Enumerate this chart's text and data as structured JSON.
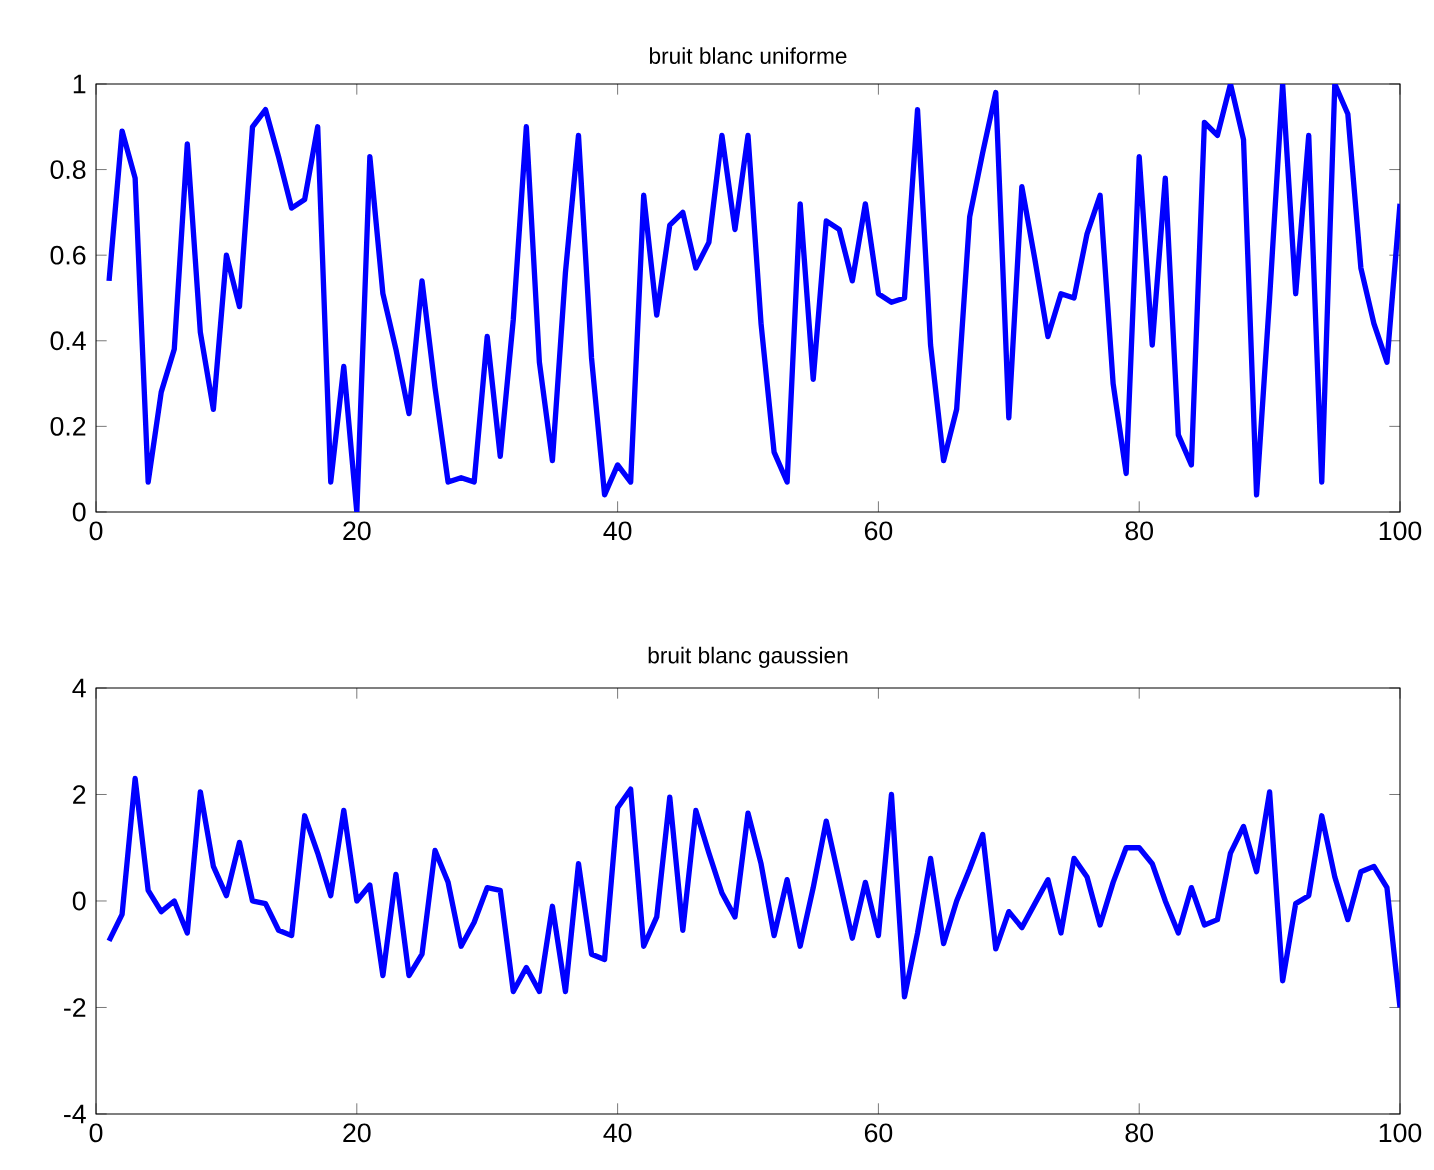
{
  "chart_data": [
    {
      "type": "line",
      "title": "bruit blanc uniforme",
      "color": "#0000ff",
      "x": [
        1,
        2,
        3,
        4,
        5,
        6,
        7,
        8,
        9,
        10,
        11,
        12,
        13,
        14,
        15,
        16,
        17,
        18,
        19,
        20,
        21,
        22,
        23,
        24,
        25,
        26,
        27,
        28,
        29,
        30,
        31,
        32,
        33,
        34,
        35,
        36,
        37,
        38,
        39,
        40,
        41,
        42,
        43,
        44,
        45,
        46,
        47,
        48,
        49,
        50,
        51,
        52,
        53,
        54,
        55,
        56,
        57,
        58,
        59,
        60,
        61,
        62,
        63,
        64,
        65,
        66,
        67,
        68,
        69,
        70,
        71,
        72,
        73,
        74,
        75,
        76,
        77,
        78,
        79,
        80,
        81,
        82,
        83,
        84,
        85,
        86,
        87,
        88,
        89,
        90,
        91,
        92,
        93,
        94,
        95,
        96,
        97,
        98,
        99,
        100
      ],
      "values": [
        0.54,
        0.89,
        0.78,
        0.07,
        0.28,
        0.38,
        0.86,
        0.42,
        0.24,
        0.6,
        0.48,
        0.9,
        0.94,
        0.83,
        0.71,
        0.73,
        0.9,
        0.07,
        0.34,
        0.0,
        0.83,
        0.51,
        0.38,
        0.23,
        0.54,
        0.29,
        0.07,
        0.08,
        0.07,
        0.41,
        0.13,
        0.45,
        0.9,
        0.35,
        0.12,
        0.56,
        0.88,
        0.36,
        0.04,
        0.11,
        0.07,
        0.74,
        0.46,
        0.67,
        0.7,
        0.57,
        0.63,
        0.88,
        0.66,
        0.88,
        0.44,
        0.14,
        0.07,
        0.72,
        0.31,
        0.68,
        0.66,
        0.54,
        0.72,
        0.51,
        0.49,
        0.5,
        0.94,
        0.39,
        0.12,
        0.24,
        0.69,
        0.84,
        0.98,
        0.22,
        0.76,
        0.59,
        0.41,
        0.51,
        0.5,
        0.65,
        0.74,
        0.3,
        0.09,
        0.83,
        0.39,
        0.78,
        0.18,
        0.11,
        0.91,
        0.88,
        1.0,
        0.87,
        0.04,
        0.5,
        1.0,
        0.51,
        0.88,
        0.07,
        1.0,
        0.93,
        0.57,
        0.44,
        0.35,
        0.72
      ],
      "xlim": [
        0,
        100
      ],
      "ylim": [
        0,
        1
      ],
      "xticks": [
        0,
        20,
        40,
        60,
        80,
        100
      ],
      "yticks": [
        0,
        0.2,
        0.4,
        0.6,
        0.8,
        1
      ]
    },
    {
      "type": "line",
      "title": "bruit blanc gaussien",
      "color": "#0000ff",
      "x": [
        1,
        2,
        3,
        4,
        5,
        6,
        7,
        8,
        9,
        10,
        11,
        12,
        13,
        14,
        15,
        16,
        17,
        18,
        19,
        20,
        21,
        22,
        23,
        24,
        25,
        26,
        27,
        28,
        29,
        30,
        31,
        32,
        33,
        34,
        35,
        36,
        37,
        38,
        39,
        40,
        41,
        42,
        43,
        44,
        45,
        46,
        47,
        48,
        49,
        50,
        51,
        52,
        53,
        54,
        55,
        56,
        57,
        58,
        59,
        60,
        61,
        62,
        63,
        64,
        65,
        66,
        67,
        68,
        69,
        70,
        71,
        72,
        73,
        74,
        75,
        76,
        77,
        78,
        79,
        80,
        81,
        82,
        83,
        84,
        85,
        86,
        87,
        88,
        89,
        90,
        91,
        92,
        93,
        94,
        95,
        96,
        97,
        98,
        99,
        100
      ],
      "values": [
        -0.75,
        -0.25,
        2.3,
        0.2,
        -0.2,
        0,
        -0.6,
        2.05,
        0.65,
        0.1,
        1.1,
        0,
        -0.05,
        -0.55,
        -0.65,
        1.6,
        0.9,
        0.1,
        1.7,
        0,
        0.3,
        -1.4,
        0.5,
        -1.4,
        -1.0,
        0.95,
        0.35,
        -0.85,
        -0.4,
        0.25,
        0.2,
        -1.7,
        -1.25,
        -1.7,
        -0.1,
        -1.7,
        0.7,
        -1.0,
        -1.1,
        1.75,
        2.1,
        -0.85,
        -0.3,
        1.95,
        -0.55,
        1.7,
        0.9,
        0.15,
        -0.3,
        1.65,
        0.7,
        -0.65,
        0.4,
        -0.85,
        0.25,
        1.5,
        0.4,
        -0.7,
        0.35,
        -0.65,
        2.0,
        -1.8,
        -0.6,
        0.8,
        -0.8,
        0,
        0.6,
        1.25,
        -0.9,
        -0.2,
        -0.5,
        -0.05,
        0.4,
        -0.6,
        0.8,
        0.45,
        -0.45,
        0.35,
        1.0,
        1.0,
        0.7,
        0,
        -0.6,
        0.25,
        -0.45,
        -0.35,
        0.9,
        1.4,
        0.55,
        2.05,
        -1.5,
        -0.05,
        0.1,
        1.6,
        0.45,
        -0.35,
        0.55,
        0.65,
        0.25,
        -2.0
      ],
      "xlim": [
        0,
        100
      ],
      "ylim": [
        -4,
        4
      ],
      "xticks": [
        0,
        20,
        40,
        60,
        80,
        100
      ],
      "yticks": [
        -4,
        -2,
        0,
        2,
        4
      ]
    }
  ]
}
